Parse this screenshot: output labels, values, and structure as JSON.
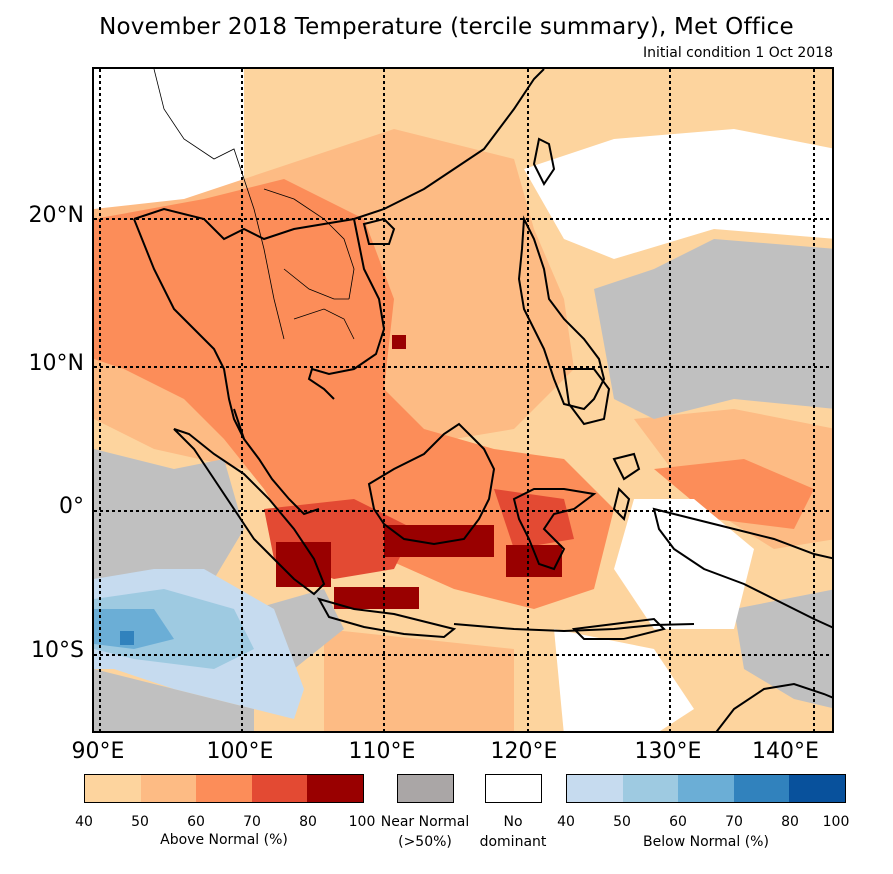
{
  "title": "November 2018 Temperature (tercile summary), Met Office",
  "subtitle": "Initial condition 1 Oct 2018",
  "map": {
    "lat_labels": [
      "20°N",
      "10°N",
      "0°",
      "10°S"
    ],
    "lon_labels": [
      "90°E",
      "100°E",
      "110°E",
      "120°E",
      "130°E",
      "140°E"
    ],
    "colors": {
      "above": [
        "#fdd49e",
        "#fdbb84",
        "#fc8d59",
        "#e34a33",
        "#990000"
      ],
      "near": "#b3b3b3",
      "none": "#ffffff",
      "below": [
        "#c6dbef",
        "#9ecae1",
        "#6baed6",
        "#3182bd",
        "#08519c"
      ]
    }
  },
  "legend": {
    "above": {
      "label": "Above Normal (%)",
      "ticks": [
        "40",
        "50",
        "60",
        "70",
        "80",
        "100"
      ],
      "colors": [
        "#fdd49e",
        "#fdbb84",
        "#fc8d59",
        "#e34a33",
        "#990000"
      ]
    },
    "near": {
      "line1": "Near Normal",
      "line2": "(>50%)",
      "color": "#aaa6a6"
    },
    "none": {
      "line1": "No",
      "line2": "dominant",
      "color": "#ffffff"
    },
    "below": {
      "label": "Below Normal (%)",
      "ticks": [
        "40",
        "50",
        "60",
        "70",
        "80",
        "100"
      ],
      "colors": [
        "#c6dbef",
        "#9ecae1",
        "#6baed6",
        "#3182bd",
        "#08519c"
      ]
    }
  }
}
